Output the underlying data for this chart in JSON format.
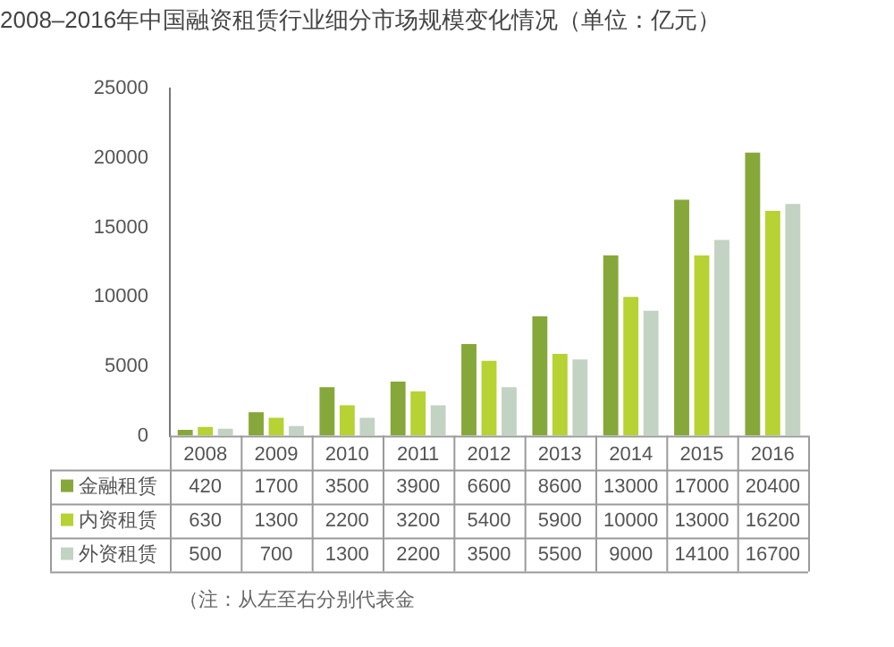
{
  "chart_data": {
    "type": "bar",
    "title": "2008–2016年中国融资租赁行业细分市场规模变化情况（单位：亿元）",
    "categories": [
      "2008",
      "2009",
      "2010",
      "2011",
      "2012",
      "2013",
      "2014",
      "2015",
      "2016"
    ],
    "series": [
      {
        "name": "金融租赁",
        "color": "#86a83a",
        "values": [
          420,
          1700,
          3500,
          3900,
          6600,
          8600,
          13000,
          17000,
          20400
        ]
      },
      {
        "name": "内资租赁",
        "color": "#b6d233",
        "values": [
          630,
          1300,
          2200,
          3200,
          5400,
          5900,
          10000,
          13000,
          16200
        ]
      },
      {
        "name": "外资租赁",
        "color": "#c3d3c3",
        "values": [
          500,
          700,
          1300,
          2200,
          3500,
          5500,
          9000,
          14100,
          16700
        ]
      }
    ],
    "ylim": [
      0,
      25000
    ],
    "yticks": [
      0,
      5000,
      10000,
      15000,
      20000,
      25000
    ],
    "grid": false,
    "legend": "bottom",
    "data_labels": true,
    "annotations": [
      "（注：从左至右分别代表金"
    ]
  }
}
